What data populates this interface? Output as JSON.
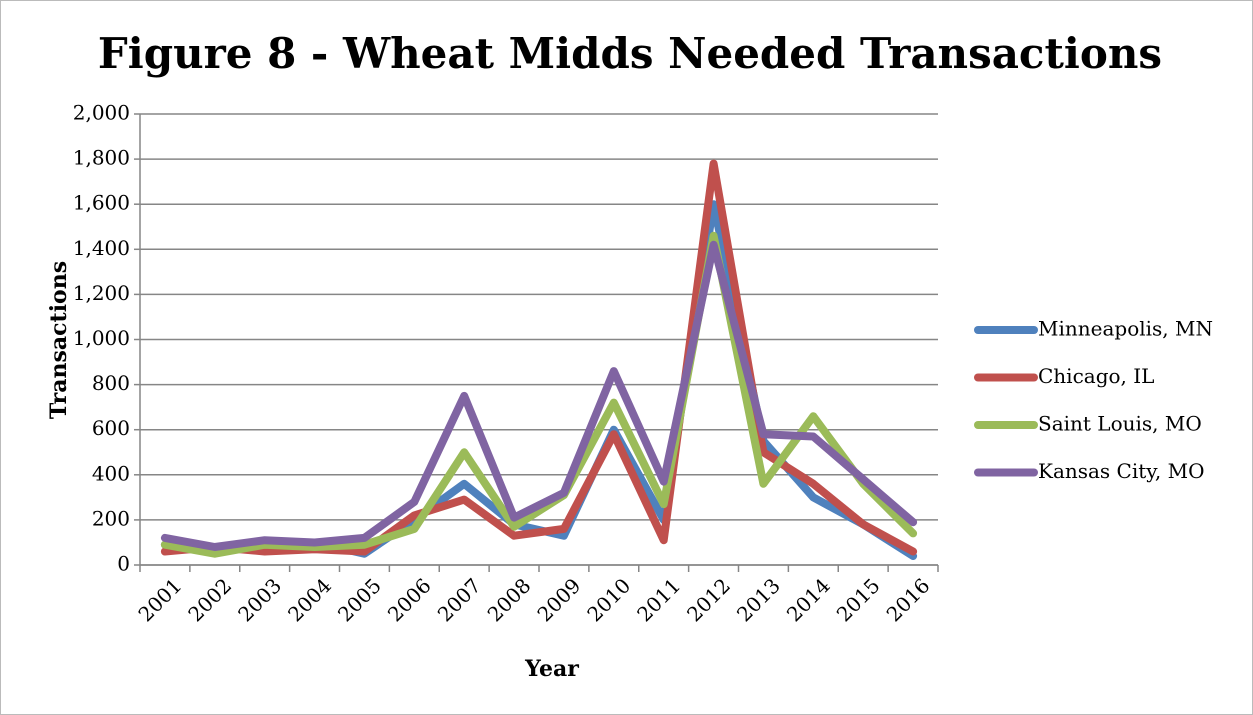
{
  "chart_data": {
    "type": "line",
    "title": "Figure 8 - Wheat Midds Needed Transactions",
    "x_label": "Year",
    "y_label": "Transactions",
    "categories": [
      "2001",
      "2002",
      "2003",
      "2004",
      "2005",
      "2006",
      "2007",
      "2008",
      "2009",
      "2010",
      "2011",
      "2012",
      "2013",
      "2014",
      "2015",
      "2016"
    ],
    "series": [
      {
        "name": "Minneapolis, MN",
        "color": "#4f81bd",
        "values": [
          90,
          60,
          90,
          100,
          50,
          200,
          360,
          180,
          130,
          600,
          200,
          1600,
          550,
          300,
          180,
          40
        ]
      },
      {
        "name": "Chicago, IL",
        "color": "#c0504d",
        "values": [
          60,
          80,
          60,
          70,
          60,
          220,
          290,
          130,
          160,
          580,
          110,
          1780,
          500,
          360,
          180,
          60
        ]
      },
      {
        "name": "Saint Louis, MO",
        "color": "#9bbb59",
        "values": [
          90,
          50,
          90,
          80,
          90,
          160,
          500,
          170,
          310,
          720,
          270,
          1460,
          360,
          660,
          360,
          140
        ]
      },
      {
        "name": "Kansas City, MO",
        "color": "#8064a2",
        "values": [
          120,
          80,
          110,
          100,
          120,
          280,
          750,
          210,
          320,
          860,
          370,
          1420,
          580,
          570,
          380,
          190
        ]
      }
    ],
    "ylim": [
      0,
      2000
    ],
    "yticks": [
      0,
      200,
      400,
      600,
      800,
      {
        "value": 1000,
        "label": "1,000"
      },
      {
        "value": 1200,
        "label": "1,200"
      },
      {
        "value": 1400,
        "label": "1,400"
      },
      {
        "value": 1600,
        "label": "1,600"
      },
      {
        "value": 1800,
        "label": "1,800"
      },
      {
        "value": 2000,
        "label": "2,000"
      }
    ],
    "grid": true,
    "legend": "right"
  }
}
